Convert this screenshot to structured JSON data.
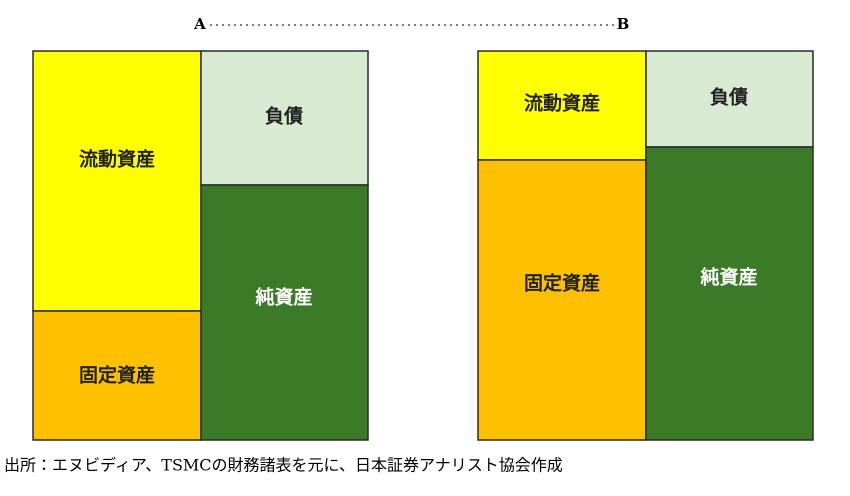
{
  "header": {
    "left": "A",
    "right": "B"
  },
  "panels": [
    {
      "blocks": [
        {
          "label": "流動資産"
        },
        {
          "label": "固定資産"
        },
        {
          "label": "負債"
        },
        {
          "label": "純資産"
        }
      ]
    },
    {
      "blocks": [
        {
          "label": "流動資産"
        },
        {
          "label": "固定資産"
        },
        {
          "label": "負債"
        },
        {
          "label": "純資産"
        }
      ]
    }
  ],
  "source": "出所：エヌビディア、TSMCの財務諸表を元に、日本証券アナリスト協会作成"
}
